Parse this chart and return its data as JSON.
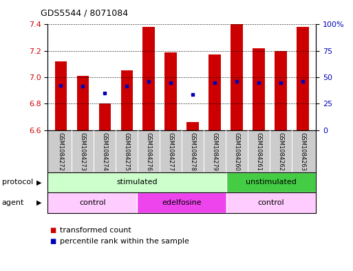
{
  "title": "GDS5544 / 8071084",
  "samples": [
    "GSM1084272",
    "GSM1084273",
    "GSM1084274",
    "GSM1084275",
    "GSM1084276",
    "GSM1084277",
    "GSM1084278",
    "GSM1084279",
    "GSM1084260",
    "GSM1084261",
    "GSM1084262",
    "GSM1084263"
  ],
  "bar_tops": [
    7.12,
    7.01,
    6.8,
    7.05,
    7.38,
    7.19,
    6.66,
    7.17,
    7.4,
    7.22,
    7.2,
    7.38
  ],
  "bar_bottom": 6.6,
  "blue_dots_y": [
    6.94,
    6.93,
    6.88,
    6.93,
    6.97,
    6.96,
    6.87,
    6.96,
    6.97,
    6.96,
    6.96,
    6.97
  ],
  "ylim": [
    6.6,
    7.4
  ],
  "yticks_left": [
    6.6,
    6.8,
    7.0,
    7.2,
    7.4
  ],
  "yticks_right_vals": [
    0,
    25,
    50,
    75,
    100
  ],
  "yticks_right_labels": [
    "0",
    "25",
    "50",
    "75",
    "100%"
  ],
  "bar_color": "#cc0000",
  "blue_dot_color": "#0000bb",
  "protocol_groups": [
    {
      "label": "stimulated",
      "start": 0,
      "end": 8,
      "color": "#ccffcc"
    },
    {
      "label": "unstimulated",
      "start": 8,
      "end": 12,
      "color": "#44cc44"
    }
  ],
  "agent_groups": [
    {
      "label": "control",
      "start": 0,
      "end": 4,
      "color": "#ffccff"
    },
    {
      "label": "edelfosine",
      "start": 4,
      "end": 8,
      "color": "#ee44ee"
    },
    {
      "label": "control",
      "start": 8,
      "end": 12,
      "color": "#ffccff"
    }
  ],
  "legend_red_label": "transformed count",
  "legend_blue_label": "percentile rank within the sample",
  "protocol_label": "protocol",
  "agent_label": "agent",
  "sample_box_color": "#cccccc",
  "bg_color": "#ffffff",
  "left_label_color": "#000000",
  "ytick_left_color": "#cc0000",
  "ytick_right_color": "#0000bb"
}
